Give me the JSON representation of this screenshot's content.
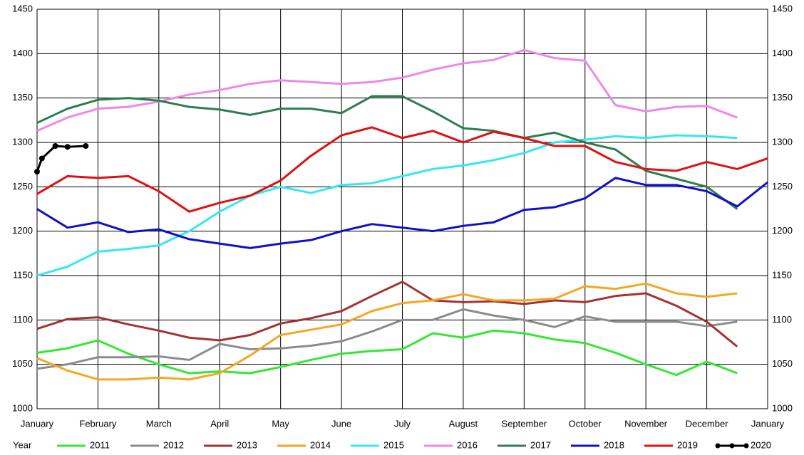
{
  "chart_data": {
    "type": "line",
    "x": [
      0,
      0.5,
      1,
      1.5,
      2,
      2.5,
      3,
      3.5,
      4,
      4.5,
      5,
      5.5,
      6,
      6.5,
      7,
      7.5,
      8,
      8.5,
      9,
      9.5,
      10,
      10.5,
      11,
      11.5,
      12
    ],
    "xlim": [
      0,
      12
    ],
    "xticks": [
      {
        "value": 0,
        "label": "January"
      },
      {
        "value": 1,
        "label": "February"
      },
      {
        "value": 2,
        "label": "March"
      },
      {
        "value": 3,
        "label": "April"
      },
      {
        "value": 4,
        "label": "May"
      },
      {
        "value": 5,
        "label": "June"
      },
      {
        "value": 6,
        "label": "July"
      },
      {
        "value": 7,
        "label": "August"
      },
      {
        "value": 8,
        "label": "September"
      },
      {
        "value": 9,
        "label": "October"
      },
      {
        "value": 10,
        "label": "November"
      },
      {
        "value": 11,
        "label": "December"
      },
      {
        "value": 12,
        "label": "January"
      }
    ],
    "ylim": [
      1000,
      1450
    ],
    "yticks": [
      1000,
      1050,
      1100,
      1150,
      1200,
      1250,
      1300,
      1350,
      1400,
      1450
    ],
    "y2lim": [
      1000,
      1450
    ],
    "y2ticks": [
      1000,
      1050,
      1100,
      1150,
      1200,
      1250,
      1300,
      1350,
      1400,
      1450
    ],
    "grid": true,
    "legend_title": "Year",
    "legend": "bottom",
    "series": [
      {
        "name": "2011",
        "color": "#33e833",
        "values": [
          1063,
          1068,
          1077,
          1062,
          1050,
          1040,
          1042,
          1040,
          1047,
          1055,
          1062,
          1065,
          1067,
          1085,
          1080,
          1088,
          1085,
          1078,
          1074,
          1063,
          1050,
          1038,
          1053,
          1040,
          null
        ]
      },
      {
        "name": "2012",
        "color": "#8c8c8c",
        "values": [
          1045,
          1050,
          1058,
          1058,
          1059,
          1055,
          1073,
          1067,
          1068,
          1071,
          1076,
          1087,
          1100,
          1100,
          1112,
          1105,
          1100,
          1092,
          1104,
          1098,
          1098,
          1098,
          1093,
          1098,
          null
        ]
      },
      {
        "name": "2013",
        "color": "#a33333",
        "values": [
          1090,
          1101,
          1103,
          1095,
          1088,
          1080,
          1077,
          1083,
          1096,
          1102,
          1110,
          1127,
          1143,
          1122,
          1120,
          1121,
          1118,
          1122,
          1120,
          1127,
          1130,
          1116,
          1098,
          1070,
          null
        ]
      },
      {
        "name": "2014",
        "color": "#f5a623",
        "values": [
          1057,
          1043,
          1033,
          1033,
          1035,
          1033,
          1040,
          1060,
          1083,
          1089,
          1095,
          1110,
          1119,
          1122,
          1129,
          1122,
          1122,
          1124,
          1138,
          1135,
          1141,
          1130,
          1126,
          1130,
          null
        ]
      },
      {
        "name": "2015",
        "color": "#33e8f0",
        "values": [
          1150,
          1160,
          1177,
          1180,
          1184,
          1200,
          1222,
          1240,
          1250,
          1243,
          1252,
          1254,
          1262,
          1270,
          1274,
          1280,
          1288,
          1300,
          1303,
          1307,
          1305,
          1308,
          1307,
          1305,
          null
        ]
      },
      {
        "name": "2016",
        "color": "#ee88e8",
        "values": [
          1313,
          1328,
          1338,
          1340,
          1346,
          1354,
          1359,
          1366,
          1370,
          1368,
          1366,
          1368,
          1373,
          1382,
          1389,
          1393,
          1404,
          1395,
          1392,
          1342,
          1335,
          1340,
          1341,
          1328,
          null
        ]
      },
      {
        "name": "2017",
        "color": "#2e7d4f",
        "values": [
          1322,
          1338,
          1348,
          1350,
          1347,
          1340,
          1337,
          1331,
          1338,
          1338,
          1333,
          1352,
          1352,
          1335,
          1316,
          1313,
          1305,
          1311,
          1300,
          1292,
          1268,
          1259,
          1250,
          1225,
          null
        ]
      },
      {
        "name": "2018",
        "color": "#1010cc",
        "values": [
          1225,
          1204,
          1210,
          1199,
          1202,
          1191,
          1186,
          1181,
          1186,
          1190,
          1200,
          1208,
          1204,
          1200,
          1206,
          1210,
          1224,
          1227,
          1237,
          1260,
          1252,
          1252,
          1245,
          1228,
          1255
        ]
      },
      {
        "name": "2019",
        "color": "#e01010",
        "values": [
          1242,
          1262,
          1260,
          1262,
          1245,
          1222,
          1232,
          1240,
          1257,
          1285,
          1308,
          1317,
          1305,
          1313,
          1300,
          1312,
          1305,
          1296,
          1296,
          1278,
          1270,
          1268,
          1278,
          1270,
          1282
        ]
      },
      {
        "name": "2020",
        "color": "#000000",
        "markers": true,
        "x": [
          0,
          0.08,
          0.3,
          0.5,
          0.8
        ],
        "values": [
          1267,
          1282,
          1296,
          1295,
          1296
        ]
      }
    ]
  }
}
